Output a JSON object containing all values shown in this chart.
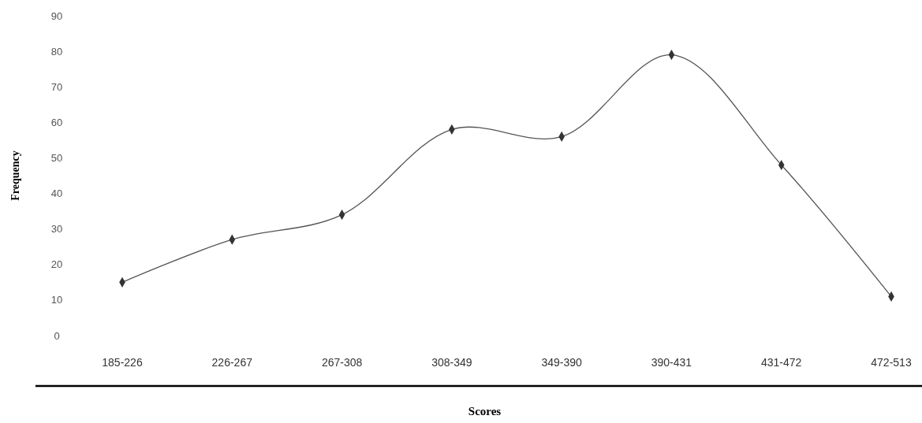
{
  "chart_data": {
    "type": "line",
    "xlabel": "Scores",
    "ylabel": "Frequency",
    "categories": [
      "185-226",
      "226-267",
      "267-308",
      "308-349",
      "349-390",
      "390-431",
      "431-472",
      "472-513"
    ],
    "series": [
      {
        "color": "#555555",
        "values": [
          15,
          27,
          34,
          58,
          56,
          79,
          48,
          11
        ]
      }
    ],
    "ylim": [
      0,
      90
    ],
    "yticks": [
      0,
      10,
      20,
      30,
      40,
      50,
      60,
      70,
      80,
      90
    ],
    "marker": "diamond",
    "line_style": "solid",
    "grid": false
  }
}
